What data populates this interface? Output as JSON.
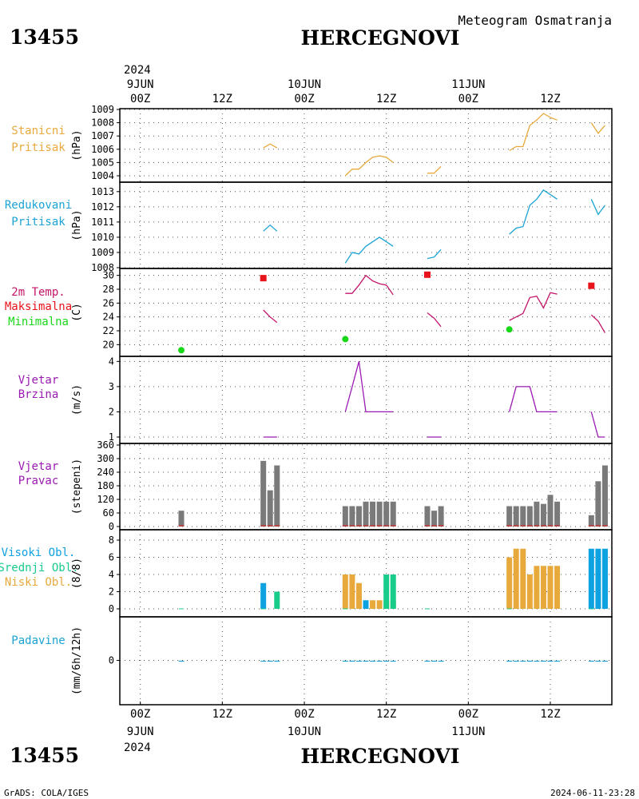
{
  "header": {
    "station_id": "13455",
    "station_name": "HERCEGNOVI",
    "subtitle": "Meteogram Osmatranja",
    "year_top": "2024",
    "footer_left": "GrADS: COLA/IGES",
    "footer_right": "2024-06-11-23:28",
    "year_bottom": "2024"
  },
  "colors": {
    "pressure_station": "#e8a93c",
    "pressure_reduced": "#1aa3d4",
    "temperature": "#c4146a",
    "temp_max": "#e8141b",
    "temp_min": "#19d819",
    "wind": "#9a1ab2",
    "wind_dir_bar": "#7a7a7a",
    "wind_dir_base": "#e8141b",
    "cloud_high": "#0ea2e0",
    "cloud_mid": "#18cc8a",
    "cloud_low": "#e8a93c",
    "precip": "#1aa3d4"
  },
  "time_axis": {
    "top_labels": [
      {
        "h": 0,
        "hour": "00Z",
        "date": "9JUN"
      },
      {
        "h": 12,
        "hour": "12Z",
        "date": ""
      },
      {
        "h": 24,
        "hour": "00Z",
        "date": "10JUN"
      },
      {
        "h": 36,
        "hour": "12Z",
        "date": ""
      },
      {
        "h": 48,
        "hour": "00Z",
        "date": "11JUN"
      },
      {
        "h": 60,
        "hour": "12Z",
        "date": ""
      }
    ],
    "bottom_labels": [
      {
        "h": 0,
        "hour": "00Z",
        "date": "9JUN"
      },
      {
        "h": 12,
        "hour": "12Z",
        "date": ""
      },
      {
        "h": 24,
        "hour": "00Z",
        "date": "10JUN"
      },
      {
        "h": 36,
        "hour": "12Z",
        "date": ""
      },
      {
        "h": 48,
        "hour": "00Z",
        "date": "11JUN"
      },
      {
        "h": 60,
        "hour": "12Z",
        "date": ""
      }
    ],
    "range_hours": [
      -3,
      69
    ]
  },
  "chart_data": [
    {
      "type": "line",
      "panel": "station_pressure",
      "legend": [
        "Stanicni",
        "Pritisak"
      ],
      "ylabel": "(hPa)",
      "ylim": [
        1004,
        1009
      ],
      "yticks": [
        1004,
        1005,
        1006,
        1007,
        1008,
        1009
      ],
      "segments": [
        [
          [
            18,
            1006.1
          ],
          [
            19,
            1006.4
          ],
          [
            20,
            1006.1
          ]
        ],
        [
          [
            30,
            1004.0
          ],
          [
            31,
            1004.5
          ],
          [
            32,
            1004.5
          ],
          [
            33,
            1005.0
          ],
          [
            34,
            1005.4
          ],
          [
            35,
            1005.5
          ],
          [
            36,
            1005.4
          ],
          [
            37,
            1005.0
          ]
        ],
        [
          [
            42,
            1004.2
          ],
          [
            43,
            1004.2
          ],
          [
            44,
            1004.7
          ]
        ],
        [
          [
            54,
            1005.9
          ],
          [
            55,
            1006.2
          ],
          [
            56,
            1006.2
          ],
          [
            57,
            1007.8
          ],
          [
            58,
            1008.2
          ],
          [
            59,
            1008.7
          ],
          [
            60,
            1008.4
          ],
          [
            61,
            1008.2
          ]
        ],
        [
          [
            66,
            1008.0
          ],
          [
            67,
            1007.2
          ],
          [
            68,
            1007.8
          ]
        ]
      ]
    },
    {
      "type": "line",
      "panel": "reduced_pressure",
      "legend": [
        "Redukovani",
        "Pritisak"
      ],
      "ylabel": "(hPa)",
      "ylim": [
        1008,
        1013.2
      ],
      "yticks": [
        1008,
        1009,
        1010,
        1011,
        1012,
        1013
      ],
      "segments": [
        [
          [
            18,
            1010.4
          ],
          [
            19,
            1010.8
          ],
          [
            20,
            1010.4
          ]
        ],
        [
          [
            30,
            1008.3
          ],
          [
            31,
            1009.0
          ],
          [
            32,
            1008.9
          ],
          [
            33,
            1009.4
          ],
          [
            34,
            1009.7
          ],
          [
            35,
            1010.0
          ],
          [
            36,
            1009.7
          ],
          [
            37,
            1009.4
          ]
        ],
        [
          [
            42,
            1008.6
          ],
          [
            43,
            1008.7
          ],
          [
            44,
            1009.2
          ]
        ],
        [
          [
            54,
            1010.2
          ],
          [
            55,
            1010.6
          ],
          [
            56,
            1010.7
          ],
          [
            57,
            1012.1
          ],
          [
            58,
            1012.5
          ],
          [
            59,
            1013.1
          ],
          [
            60,
            1012.8
          ],
          [
            61,
            1012.5
          ]
        ],
        [
          [
            66,
            1012.5
          ],
          [
            67,
            1011.5
          ],
          [
            68,
            1012.1
          ]
        ]
      ]
    },
    {
      "type": "line",
      "panel": "temperature",
      "legend": [
        "2m Temp.",
        "Maksimalna",
        "Minimalna"
      ],
      "ylabel": "(C)",
      "ylim": [
        19,
        31
      ],
      "yticks": [
        20,
        22,
        24,
        26,
        28,
        30
      ],
      "segments": [
        [
          [
            18,
            25.0
          ],
          [
            19,
            24.0
          ],
          [
            20,
            23.2
          ]
        ],
        [
          [
            30,
            27.4
          ],
          [
            31,
            27.4
          ],
          [
            32,
            28.6
          ],
          [
            33,
            30.0
          ],
          [
            34,
            29.2
          ],
          [
            35,
            28.8
          ],
          [
            36,
            28.6
          ],
          [
            37,
            27.2
          ]
        ],
        [
          [
            42,
            24.6
          ],
          [
            43,
            23.8
          ],
          [
            44,
            22.6
          ]
        ],
        [
          [
            54,
            23.5
          ],
          [
            55,
            24.0
          ],
          [
            56,
            24.5
          ],
          [
            57,
            26.8
          ],
          [
            58,
            27.0
          ],
          [
            59,
            25.3
          ],
          [
            60,
            27.5
          ],
          [
            61,
            27.3
          ]
        ],
        [
          [
            66,
            24.3
          ],
          [
            67,
            23.4
          ],
          [
            68,
            21.7
          ]
        ]
      ],
      "maximum": [
        [
          18,
          29.6
        ],
        [
          42,
          30.1
        ],
        [
          66,
          28.5
        ]
      ],
      "minimum": [
        [
          6,
          19.2
        ],
        [
          30,
          20.8
        ],
        [
          54,
          22.2
        ]
      ]
    },
    {
      "type": "line",
      "panel": "wind_speed",
      "legend": [
        "Vjetar",
        "Brzina"
      ],
      "ylabel": "(m/s)",
      "ylim": [
        1,
        4.2
      ],
      "yticks": [
        1,
        2,
        3,
        4
      ],
      "segments": [
        [
          [
            18,
            1.0
          ],
          [
            19,
            1.0
          ],
          [
            20,
            1.0
          ]
        ],
        [
          [
            30,
            2.0
          ],
          [
            31,
            3.0
          ],
          [
            32,
            4.0
          ],
          [
            33,
            2.0
          ],
          [
            34,
            2.0
          ],
          [
            35,
            2.0
          ],
          [
            36,
            2.0
          ],
          [
            37,
            2.0
          ]
        ],
        [
          [
            42,
            1.0
          ],
          [
            43,
            1.0
          ],
          [
            44,
            1.0
          ]
        ],
        [
          [
            54,
            2.0
          ],
          [
            55,
            3.0
          ],
          [
            56,
            3.0
          ],
          [
            57,
            3.0
          ],
          [
            58,
            2.0
          ],
          [
            59,
            2.0
          ],
          [
            60,
            2.0
          ],
          [
            61,
            2.0
          ]
        ],
        [
          [
            66,
            2.0
          ],
          [
            67,
            1.0
          ],
          [
            68,
            1.0
          ]
        ]
      ]
    },
    {
      "type": "bar",
      "panel": "wind_direction",
      "legend": [
        "Vjetar",
        "Pravac"
      ],
      "ylabel": "(stepeni)",
      "ylim": [
        0,
        360
      ],
      "yticks": [
        0,
        60,
        120,
        180,
        240,
        300,
        360
      ],
      "bars": [
        [
          6,
          70
        ],
        [
          18,
          290
        ],
        [
          19,
          160
        ],
        [
          20,
          270
        ],
        [
          30,
          90
        ],
        [
          31,
          90
        ],
        [
          32,
          90
        ],
        [
          33,
          110
        ],
        [
          34,
          110
        ],
        [
          35,
          110
        ],
        [
          36,
          110
        ],
        [
          37,
          110
        ],
        [
          42,
          90
        ],
        [
          43,
          70
        ],
        [
          44,
          90
        ],
        [
          54,
          90
        ],
        [
          55,
          90
        ],
        [
          56,
          90
        ],
        [
          57,
          90
        ],
        [
          58,
          110
        ],
        [
          59,
          100
        ],
        [
          60,
          140
        ],
        [
          61,
          110
        ],
        [
          66,
          50
        ],
        [
          67,
          200
        ],
        [
          68,
          270
        ]
      ]
    },
    {
      "type": "bar",
      "panel": "clouds",
      "legend": [
        "Visoki Obl.",
        "Srednji Obl.",
        "Niski Obl."
      ],
      "ylabel": "(8/8)",
      "ylim": [
        0,
        8
      ],
      "yticks": [
        0,
        2,
        4,
        6,
        8
      ],
      "series": [
        {
          "name": "Niski Obl.",
          "points": [
            [
              30,
              4
            ],
            [
              31,
              4
            ],
            [
              32,
              3
            ],
            [
              34,
              1
            ],
            [
              35,
              1
            ],
            [
              36,
              1
            ],
            [
              37,
              1
            ],
            [
              54,
              6
            ],
            [
              55,
              7
            ],
            [
              56,
              7
            ],
            [
              57,
              4
            ],
            [
              58,
              5
            ],
            [
              59,
              5
            ],
            [
              60,
              5
            ],
            [
              61,
              5
            ]
          ]
        },
        {
          "name": "Srednji Obl.",
          "points": [
            [
              20,
              2
            ],
            [
              36,
              4
            ],
            [
              37,
              4
            ]
          ]
        },
        {
          "name": "Visoki Obl.",
          "points": [
            [
              18,
              3
            ],
            [
              33,
              1
            ],
            [
              66,
              7
            ],
            [
              67,
              7
            ],
            [
              68,
              7
            ]
          ]
        }
      ]
    },
    {
      "type": "bar",
      "panel": "precipitation",
      "legend": [
        "Padavine"
      ],
      "ylabel": "(mm/6h/12h)",
      "ylim": [
        -3,
        3
      ],
      "yticks": [
        0
      ],
      "bars": [
        [
          6,
          0
        ],
        [
          18,
          0
        ],
        [
          19,
          0
        ],
        [
          20,
          0
        ],
        [
          30,
          0
        ],
        [
          31,
          0
        ],
        [
          32,
          0
        ],
        [
          33,
          0
        ],
        [
          34,
          0
        ],
        [
          35,
          0
        ],
        [
          36,
          0
        ],
        [
          37,
          0
        ],
        [
          42,
          0
        ],
        [
          43,
          0
        ],
        [
          44,
          0
        ],
        [
          54,
          0
        ],
        [
          55,
          0
        ],
        [
          56,
          0
        ],
        [
          57,
          0
        ],
        [
          58,
          0
        ],
        [
          59,
          0
        ],
        [
          60,
          0
        ],
        [
          61,
          0
        ],
        [
          66,
          0
        ],
        [
          67,
          0
        ],
        [
          68,
          0
        ]
      ]
    }
  ]
}
